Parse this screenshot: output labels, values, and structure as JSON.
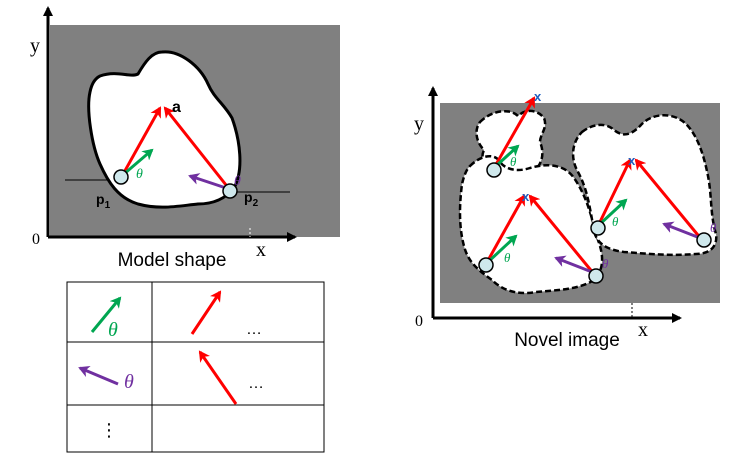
{
  "colors": {
    "panel_bg": "#808080",
    "shape_fill": "#ffffff",
    "red_vector": "#ff0000",
    "green_vector": "#00a651",
    "purple_vector": "#7030a0",
    "point_fill": "#cfe8ec",
    "marker_blue": "#1f5fbf"
  },
  "model": {
    "axis_y": "y",
    "axis_x": "x",
    "origin": "0",
    "point_a": "a",
    "p1_base": "p",
    "p1_sub": "1",
    "p2_base": "p",
    "p2_sub": "2",
    "theta_green": "θ",
    "theta_purple": "θ",
    "caption": "Model shape"
  },
  "table": {
    "row1_theta": "θ",
    "row1_dots": "…",
    "row2_theta": "θ",
    "row2_dots": "…",
    "row3_dots": "⋮"
  },
  "novel": {
    "axis_y": "y",
    "axis_x": "x",
    "origin": "0",
    "marker": "x",
    "theta_1": "θ",
    "theta_2": "θ",
    "theta_3": "θ",
    "theta_4": "θ",
    "caption": "Novel image"
  }
}
